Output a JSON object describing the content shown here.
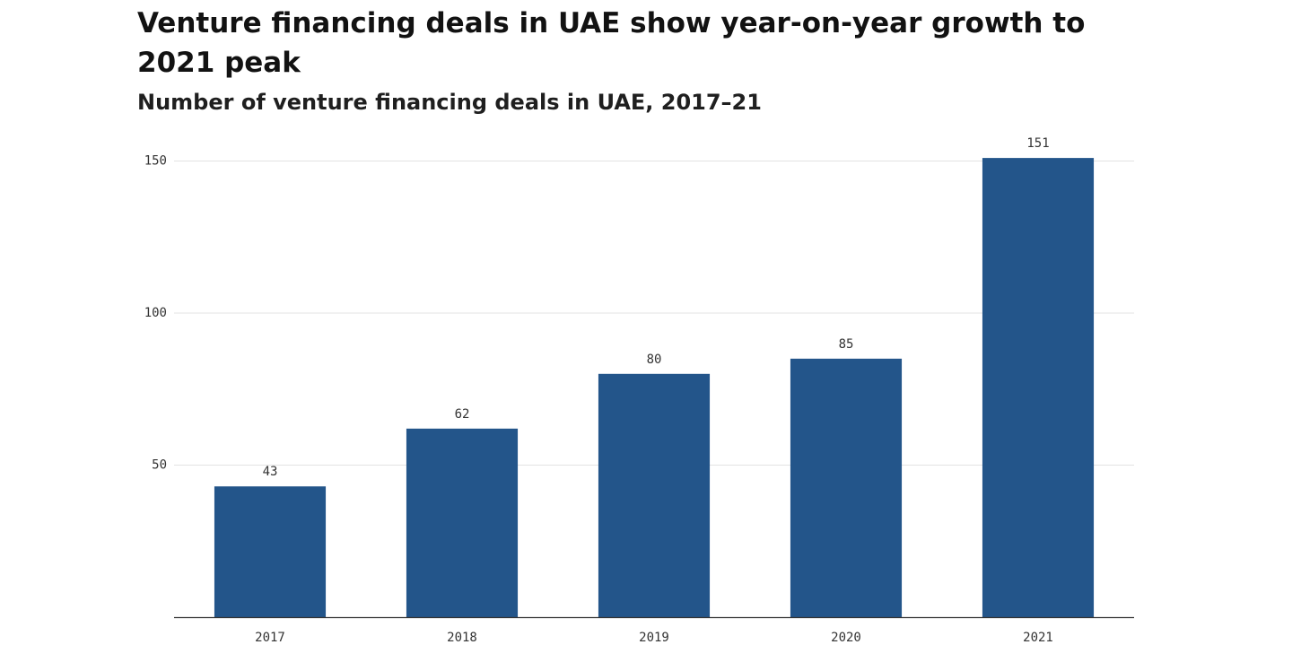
{
  "chart_data": {
    "type": "bar",
    "title": "Venture financing deals in UAE show year-on-year growth to 2021 peak",
    "subtitle": "Number of venture financing deals in UAE, 2017–21",
    "categories": [
      "2017",
      "2018",
      "2019",
      "2020",
      "2021"
    ],
    "values": [
      43,
      62,
      80,
      85,
      151
    ],
    "value_labels": [
      "43",
      "62",
      "80",
      "85",
      "151"
    ],
    "yticks": [
      50,
      100,
      150
    ],
    "ytick_labels": [
      "50",
      "100",
      "150"
    ],
    "ylim": [
      0,
      155
    ],
    "grid": true,
    "bar_color": "#23558a",
    "grid_color": "#e3e3e3",
    "axis_color": "#333333"
  }
}
